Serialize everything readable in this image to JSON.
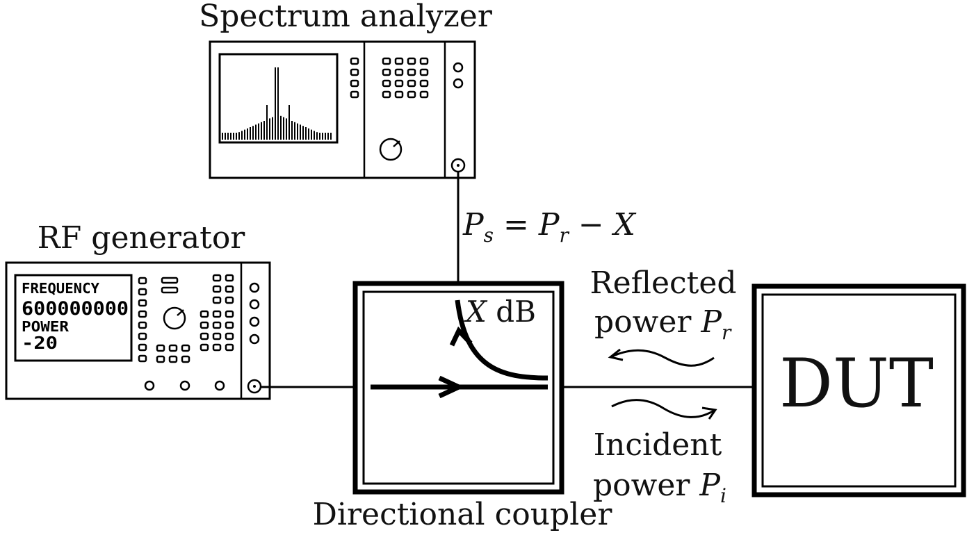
{
  "labels": {
    "spectrum_analyzer": "Spectrum analyzer",
    "rf_generator": "RF generator",
    "directional_coupler": "Directional coupler",
    "dut": "DUT",
    "coupling_factor": "X dB",
    "equation": "P_s = P_r − X",
    "reflected_line1": "Reflected",
    "reflected_line2": "power P_r",
    "incident_line1": "Incident",
    "incident_line2": "power P_i"
  },
  "rf_generator_display": {
    "frequency_label": "FREQUENCY",
    "frequency_value": "600000000",
    "power_label": "POWER",
    "power_value": "-20"
  }
}
